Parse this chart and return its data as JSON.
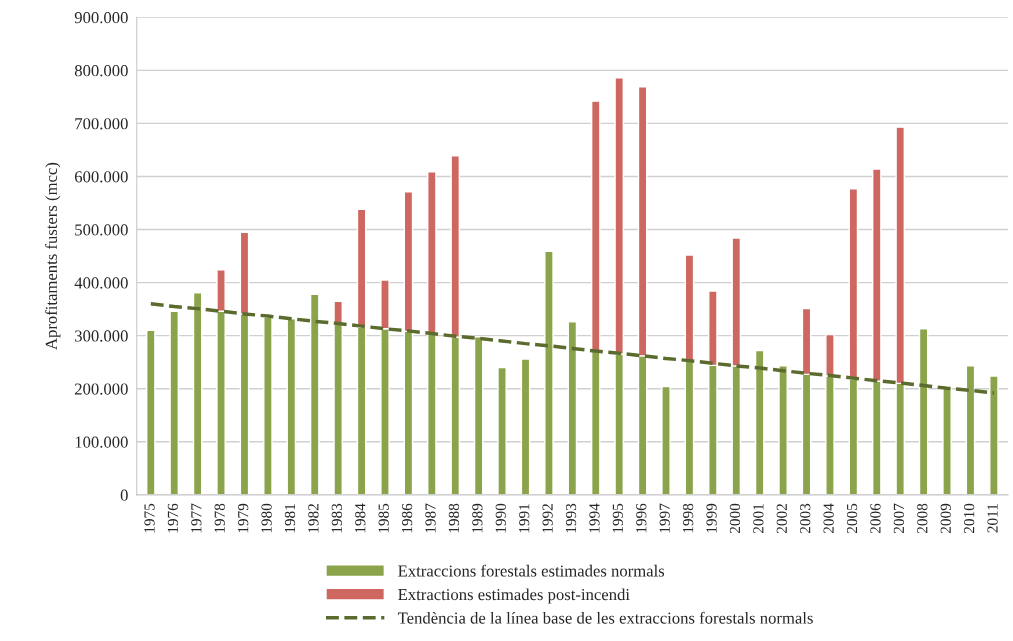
{
  "chart_data": {
    "type": "bar",
    "stacked": true,
    "ylabel": "Aprofitaments fusters (mcc)",
    "categories": [
      "1975",
      "1976",
      "1977",
      "1978",
      "1979",
      "1980",
      "1981",
      "1982",
      "1983",
      "1984",
      "1985",
      "1986",
      "1987",
      "1988",
      "1989",
      "1990",
      "1991",
      "1992",
      "1993",
      "1994",
      "1995",
      "1996",
      "1997",
      "1998",
      "1999",
      "2000",
      "2001",
      "2002",
      "2003",
      "2004",
      "2005",
      "2006",
      "2007",
      "2008",
      "2009",
      "2010",
      "2011"
    ],
    "series": [
      {
        "name": "Extraccions forestals estimades normals",
        "color": "#8ba34b",
        "values": [
          310000,
          346000,
          381000,
          346000,
          341000,
          335000,
          332000,
          378000,
          323000,
          316000,
          313000,
          308000,
          304000,
          297000,
          298000,
          240000,
          256000,
          459000,
          326000,
          271000,
          265000,
          262000,
          204000,
          252000,
          244000,
          243000,
          272000,
          243000,
          227000,
          224000,
          219000,
          214000,
          210000,
          313000,
          204000,
          243000,
          224000
        ]
      },
      {
        "name": "Extractions estimades post-incendi",
        "color": "#cd6760",
        "values": [
          null,
          null,
          null,
          78000,
          154000,
          null,
          null,
          null,
          42000,
          222000,
          92000,
          263000,
          305000,
          342000,
          null,
          null,
          null,
          null,
          null,
          471000,
          521000,
          507000,
          null,
          200000,
          140000,
          241000,
          null,
          null,
          124000,
          78000,
          358000,
          400000,
          483000,
          null,
          null,
          null,
          null
        ]
      },
      {
        "name": "Tendència de la línea base de les extraccions forestals normals",
        "type": "line",
        "line_style": "dashed",
        "color": "#5b6b2e",
        "values": [
          360000,
          355000,
          351000,
          346000,
          341000,
          337000,
          332000,
          327000,
          323000,
          318000,
          313000,
          309000,
          304000,
          299000,
          295000,
          290000,
          285000,
          281000,
          276000,
          271000,
          267000,
          262000,
          257000,
          253000,
          248000,
          243000,
          239000,
          234000,
          229000,
          225000,
          220000,
          215000,
          211000,
          206000,
          201000,
          197000,
          192000
        ]
      }
    ],
    "ylim": [
      0,
      900000
    ],
    "yticks": [
      0,
      {
        "value": 100000,
        "label": "100.000"
      },
      {
        "value": 200000,
        "label": "200.000"
      },
      {
        "value": 300000,
        "label": "300.000"
      },
      {
        "value": 400000,
        "label": "400.000"
      },
      {
        "value": 500000,
        "label": "500.000"
      },
      {
        "value": 600000,
        "label": "600.000"
      },
      {
        "value": 700000,
        "label": "700.000"
      },
      {
        "value": 800000,
        "label": "800.000"
      },
      {
        "value": 900000,
        "label": "900.000"
      }
    ],
    "grid": "y",
    "legend": "bottom"
  }
}
